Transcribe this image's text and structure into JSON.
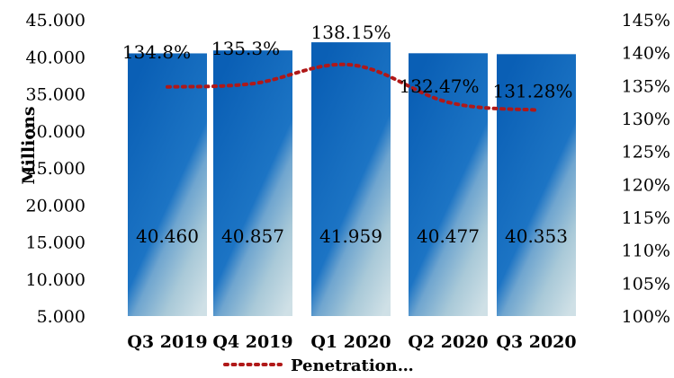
{
  "chart_data": {
    "type": "bar",
    "categories": [
      "Q3 2019",
      "Q4 2019",
      "Q1 2020",
      "Q2 2020",
      "Q3 2020"
    ],
    "series": [
      {
        "axis": "left",
        "type": "bar",
        "values": [
          40.46,
          40.857,
          41.959,
          40.477,
          40.353
        ],
        "labels": [
          "40.460",
          "40.857",
          "41.959",
          "40.477",
          "40.353"
        ]
      },
      {
        "name": "Penetration…",
        "axis": "right",
        "type": "line",
        "style": "dotted",
        "color": "#b01818",
        "values": [
          134.8,
          135.3,
          138.15,
          132.47,
          131.28
        ],
        "labels": [
          "134.8%",
          "135.3%",
          "138.15%",
          "132.47%",
          "131.28%"
        ]
      }
    ],
    "ylabel": "Millions",
    "ylim": [
      5,
      45
    ],
    "yticks": [
      "5.000",
      "10.000",
      "15.000",
      "20.000",
      "25.000",
      "30.000",
      "35.000",
      "40.000",
      "45.000"
    ],
    "y2lim": [
      100,
      145
    ],
    "y2ticks": [
      "100%",
      "105%",
      "110%",
      "115%",
      "120%",
      "125%",
      "130%",
      "135%",
      "140%",
      "145%"
    ],
    "legend_position": "bottom",
    "colors": {
      "bar_top": "#0a5fb5",
      "bar_bottom": "#a9c9d8",
      "line": "#b01818"
    },
    "grid": false
  }
}
